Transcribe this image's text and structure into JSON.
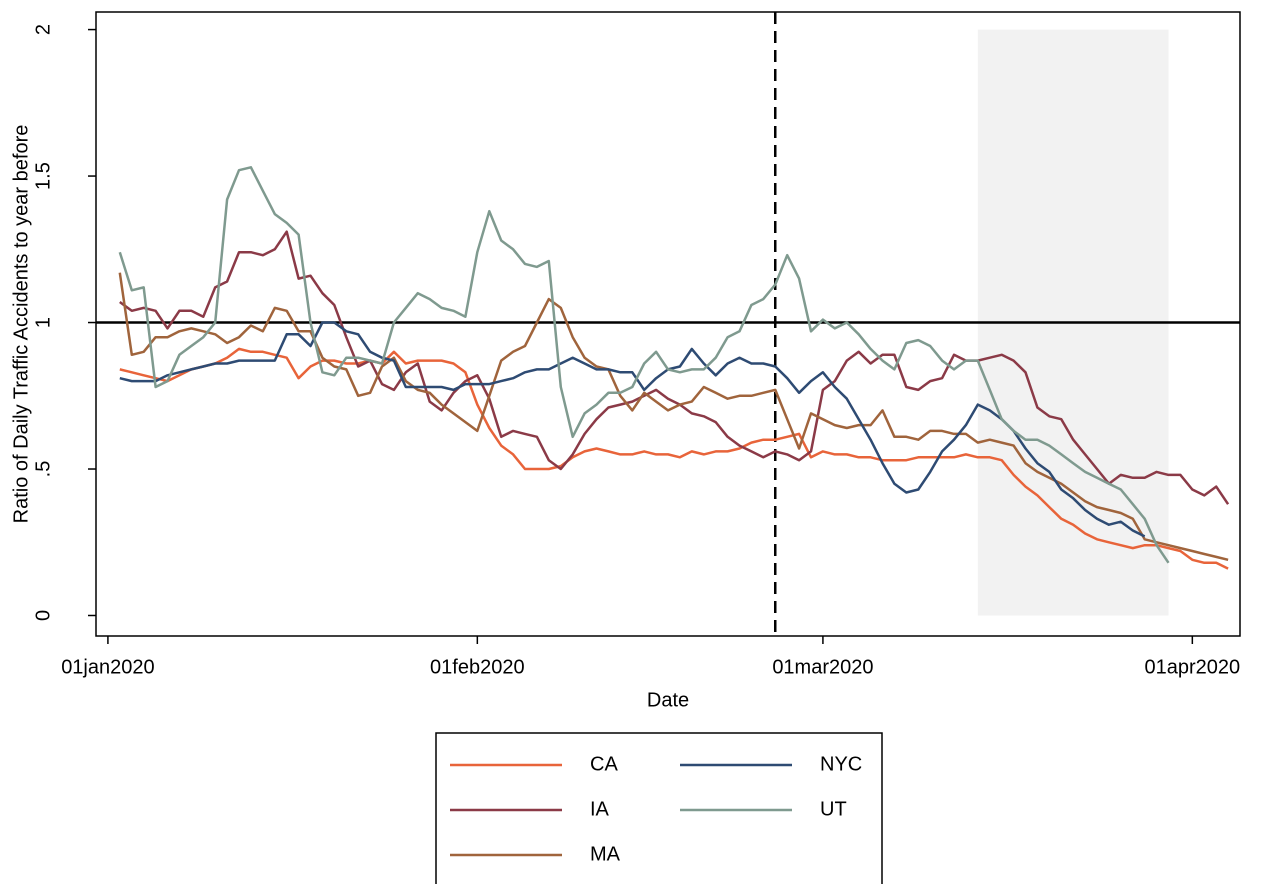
{
  "chart_data": {
    "type": "line",
    "xlabel": "Date",
    "ylabel": "Ratio of Daily Traffic Accidents to year before",
    "x": [
      "2020-01-02",
      "2020-01-03",
      "2020-01-04",
      "2020-01-05",
      "2020-01-06",
      "2020-01-07",
      "2020-01-08",
      "2020-01-09",
      "2020-01-10",
      "2020-01-11",
      "2020-01-12",
      "2020-01-13",
      "2020-01-14",
      "2020-01-15",
      "2020-01-16",
      "2020-01-17",
      "2020-01-18",
      "2020-01-19",
      "2020-01-20",
      "2020-01-21",
      "2020-01-22",
      "2020-01-23",
      "2020-01-24",
      "2020-01-25",
      "2020-01-26",
      "2020-01-27",
      "2020-01-28",
      "2020-01-29",
      "2020-01-30",
      "2020-01-31",
      "2020-02-01",
      "2020-02-02",
      "2020-02-03",
      "2020-02-04",
      "2020-02-05",
      "2020-02-06",
      "2020-02-07",
      "2020-02-08",
      "2020-02-09",
      "2020-02-10",
      "2020-02-11",
      "2020-02-12",
      "2020-02-13",
      "2020-02-14",
      "2020-02-15",
      "2020-02-16",
      "2020-02-17",
      "2020-02-18",
      "2020-02-19",
      "2020-02-20",
      "2020-02-21",
      "2020-02-22",
      "2020-02-23",
      "2020-02-24",
      "2020-02-25",
      "2020-02-26",
      "2020-02-27",
      "2020-02-28",
      "2020-02-29",
      "2020-03-01",
      "2020-03-02",
      "2020-03-03",
      "2020-03-04",
      "2020-03-05",
      "2020-03-06",
      "2020-03-07",
      "2020-03-08",
      "2020-03-09",
      "2020-03-10",
      "2020-03-11",
      "2020-03-12",
      "2020-03-13",
      "2020-03-14",
      "2020-03-15",
      "2020-03-16",
      "2020-03-17",
      "2020-03-18",
      "2020-03-19",
      "2020-03-20",
      "2020-03-21",
      "2020-03-22",
      "2020-03-23",
      "2020-03-24",
      "2020-03-25",
      "2020-03-26",
      "2020-03-27",
      "2020-03-28",
      "2020-03-29",
      "2020-03-30",
      "2020-03-31",
      "2020-04-01",
      "2020-04-02",
      "2020-04-03",
      "2020-04-04"
    ],
    "series": [
      {
        "name": "CA",
        "color": "#e8643a",
        "values": [
          0.84,
          0.83,
          0.82,
          0.81,
          0.8,
          0.82,
          0.84,
          0.85,
          0.86,
          0.88,
          0.91,
          0.9,
          0.9,
          0.89,
          0.88,
          0.81,
          0.85,
          0.87,
          0.87,
          0.86,
          0.86,
          0.87,
          0.86,
          0.9,
          0.86,
          0.87,
          0.87,
          0.87,
          0.86,
          0.83,
          0.72,
          0.64,
          0.58,
          0.55,
          0.5,
          0.5,
          0.5,
          0.51,
          0.54,
          0.56,
          0.57,
          0.56,
          0.55,
          0.55,
          0.56,
          0.55,
          0.55,
          0.54,
          0.56,
          0.55,
          0.56,
          0.56,
          0.57,
          0.59,
          0.6,
          0.6,
          0.61,
          0.62,
          0.54,
          0.56,
          0.55,
          0.55,
          0.54,
          0.54,
          0.53,
          0.53,
          0.53,
          0.54,
          0.54,
          0.54,
          0.54,
          0.55,
          0.54,
          0.54,
          0.53,
          0.48,
          0.44,
          0.41,
          0.37,
          0.33,
          0.31,
          0.28,
          0.26,
          0.25,
          0.24,
          0.23,
          0.24,
          0.24,
          0.23,
          0.22,
          0.19,
          0.18,
          0.18,
          0.16
        ]
      },
      {
        "name": "IA",
        "color": "#8b3a47",
        "values": [
          1.07,
          1.04,
          1.05,
          1.04,
          0.98,
          1.04,
          1.04,
          1.02,
          1.12,
          1.14,
          1.24,
          1.24,
          1.23,
          1.25,
          1.31,
          1.15,
          1.16,
          1.1,
          1.06,
          0.95,
          0.85,
          0.87,
          0.79,
          0.77,
          0.83,
          0.86,
          0.73,
          0.7,
          0.76,
          0.8,
          0.82,
          0.74,
          0.61,
          0.63,
          0.62,
          0.61,
          0.53,
          0.5,
          0.55,
          0.62,
          0.67,
          0.71,
          0.72,
          0.73,
          0.75,
          0.77,
          0.74,
          0.72,
          0.69,
          0.68,
          0.66,
          0.61,
          0.58,
          0.56,
          0.54,
          0.56,
          0.55,
          0.53,
          0.56,
          0.77,
          0.8,
          0.87,
          0.9,
          0.86,
          0.89,
          0.89,
          0.78,
          0.77,
          0.8,
          0.81,
          0.89,
          0.87,
          0.87,
          0.88,
          0.89,
          0.87,
          0.83,
          0.71,
          0.68,
          0.67,
          0.6,
          0.55,
          0.5,
          0.45,
          0.48,
          0.47,
          0.47,
          0.49,
          0.48,
          0.48,
          0.43,
          0.41,
          0.44,
          0.38
        ]
      },
      {
        "name": "MA",
        "color": "#a0643c",
        "values": [
          1.17,
          0.89,
          0.9,
          0.95,
          0.95,
          0.97,
          0.98,
          0.97,
          0.96,
          0.93,
          0.95,
          0.99,
          0.97,
          1.05,
          1.04,
          0.97,
          0.97,
          0.88,
          0.85,
          0.84,
          0.75,
          0.76,
          0.85,
          0.88,
          0.8,
          0.77,
          0.76,
          0.72,
          0.69,
          0.66,
          0.63,
          0.75,
          0.87,
          0.9,
          0.92,
          1.0,
          1.08,
          1.05,
          0.95,
          0.88,
          0.85,
          0.84,
          0.75,
          0.7,
          0.76,
          0.73,
          0.7,
          0.72,
          0.73,
          0.78,
          0.76,
          0.74,
          0.75,
          0.75,
          0.76,
          0.77,
          0.67,
          0.57,
          0.69,
          0.67,
          0.65,
          0.64,
          0.65,
          0.65,
          0.7,
          0.61,
          0.61,
          0.6,
          0.63,
          0.63,
          0.62,
          0.62,
          0.59,
          0.6,
          0.59,
          0.58,
          0.52,
          0.49,
          0.47,
          0.45,
          0.42,
          0.39,
          0.37,
          0.36,
          0.35,
          0.33,
          0.26,
          0.25,
          0.24,
          0.23,
          0.22,
          0.21,
          0.2,
          0.19
        ]
      },
      {
        "name": "NYC",
        "color": "#2e4b73",
        "values": [
          0.81,
          0.8,
          0.8,
          0.8,
          0.82,
          0.83,
          0.84,
          0.85,
          0.86,
          0.86,
          0.87,
          0.87,
          0.87,
          0.87,
          0.96,
          0.96,
          0.92,
          1.0,
          1.0,
          0.97,
          0.96,
          0.9,
          0.88,
          0.87,
          0.78,
          0.78,
          0.78,
          0.78,
          0.77,
          0.79,
          0.79,
          0.79,
          0.8,
          0.81,
          0.83,
          0.84,
          0.84,
          0.86,
          0.88,
          0.86,
          0.84,
          0.84,
          0.83,
          0.83,
          0.77,
          0.81,
          0.84,
          0.85,
          0.91,
          0.86,
          0.82,
          0.86,
          0.88,
          0.86,
          0.86,
          0.85,
          0.81,
          0.76,
          0.8,
          0.83,
          0.78,
          0.74,
          0.67,
          0.6,
          0.52,
          0.45,
          0.42,
          0.43,
          0.49,
          0.56,
          0.6,
          0.65,
          0.72,
          0.7,
          0.67,
          0.63,
          0.57,
          0.52,
          0.49,
          0.43,
          0.4,
          0.36,
          0.33,
          0.31,
          0.32,
          0.29,
          0.27,
          null,
          null,
          null,
          null,
          null,
          null,
          null
        ]
      },
      {
        "name": "UT",
        "color": "#7f9a8f",
        "values": [
          1.24,
          1.11,
          1.12,
          0.78,
          0.8,
          0.89,
          0.92,
          0.95,
          1.0,
          1.42,
          1.52,
          1.53,
          1.45,
          1.37,
          1.34,
          1.3,
          1.0,
          0.83,
          0.82,
          0.88,
          0.88,
          0.87,
          0.86,
          1.0,
          1.05,
          1.1,
          1.08,
          1.05,
          1.04,
          1.02,
          1.24,
          1.38,
          1.28,
          1.25,
          1.2,
          1.19,
          1.21,
          0.78,
          0.61,
          0.69,
          0.72,
          0.76,
          0.76,
          0.78,
          0.86,
          0.9,
          0.84,
          0.83,
          0.84,
          0.84,
          0.88,
          0.95,
          0.97,
          1.06,
          1.08,
          1.13,
          1.23,
          1.15,
          0.97,
          1.01,
          0.98,
          1.0,
          0.96,
          0.91,
          0.87,
          0.84,
          0.93,
          0.94,
          0.92,
          0.87,
          0.84,
          0.87,
          0.87,
          0.77,
          0.67,
          0.63,
          0.6,
          0.6,
          0.58,
          0.55,
          0.52,
          0.49,
          0.47,
          0.45,
          0.43,
          0.38,
          0.33,
          0.24,
          0.18,
          null,
          null,
          null,
          null,
          null
        ]
      }
    ],
    "xlim": [
      "2019-12-31",
      "2020-04-05"
    ],
    "xticks": [
      {
        "value": "2020-01-01",
        "label": "01jan2020"
      },
      {
        "value": "2020-02-01",
        "label": "01feb2020"
      },
      {
        "value": "2020-03-01",
        "label": "01mar2020"
      },
      {
        "value": "2020-04-01",
        "label": "01apr2020"
      }
    ],
    "ylim": [
      -0.07,
      2.06
    ],
    "yticks": [
      0,
      {
        "value": 0.5,
        "label": ".5"
      },
      1,
      {
        "value": 1.5,
        "label": "1.5"
      },
      2
    ],
    "reference_line": 1,
    "event_date": "2020-02-26",
    "shaded_region": {
      "x": [
        "2020-03-14",
        "2020-03-30"
      ],
      "y": [
        0,
        2
      ],
      "color": "#f2f2f2"
    },
    "grid": false,
    "legend": "bottom"
  }
}
